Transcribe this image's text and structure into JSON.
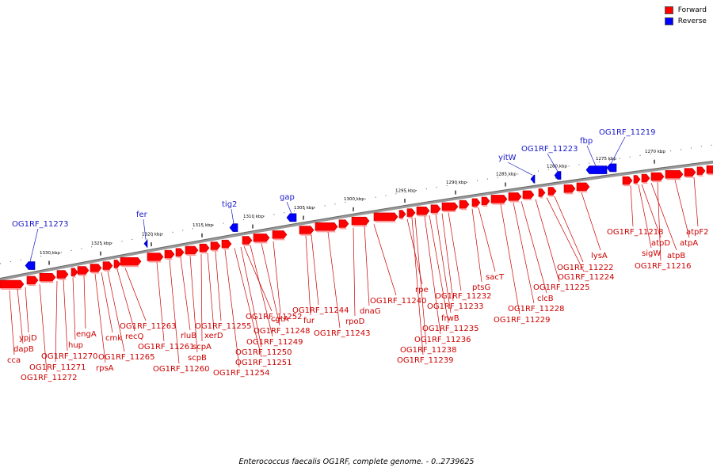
{
  "legend": {
    "forward": {
      "label": "Forward",
      "color": "#ff0000"
    },
    "reverse": {
      "label": "Reverse",
      "color": "#0000ff"
    }
  },
  "caption": "Enterococcus faecalis OG1RF, complete genome. - 0..2739625",
  "ticks": [
    "1270 kbp",
    "1275 kbp",
    "1280 kbp",
    "1285 kbp",
    "1290 kbp",
    "1295 kbp",
    "1300 kbp",
    "1305 kbp",
    "1310 kbp",
    "1315 kbp",
    "1320 kbp",
    "1325 kbp",
    "1330 kbp"
  ],
  "reverse_labels": [
    "OG1RF_11273",
    "fer",
    "tig2",
    "gap",
    "yitW",
    "OG1RF_11223",
    "fbp",
    "OG1RF_11219"
  ],
  "forward_labels": [
    "cca",
    "dapB",
    "ypjD",
    "OG1RF_11272",
    "OG1RF_11271",
    "OG1RF_11270",
    "hup",
    "engA",
    "rpsA",
    "cmk",
    "OG1RF_11265",
    "recQ",
    "OG1RF_11263",
    "OG1RF_11261",
    "OG1RF_11260",
    "rluB",
    "scpB",
    "scpA",
    "xerD",
    "OG1RF_11255",
    "OG1RF_11254",
    "OG1RF_11251",
    "OG1RF_11250",
    "OG1RF_11252",
    "OG1RF_11249",
    "OG1RF_11248",
    "cgtA",
    "fur",
    "OG1RF_11244",
    "OG1RF_11243",
    "rpoD",
    "dnaG",
    "OG1RF_11240",
    "OG1RF_11239",
    "OG1RF_11238",
    "rpe",
    "OG1RF_11236",
    "OG1RF_11235",
    "frwB",
    "OG1RF_11233",
    "OG1RF_11232",
    "ptsG",
    "sacT",
    "OG1RF_11229",
    "OG1RF_11228",
    "clcB",
    "OG1RF_11225",
    "OG1RF_11224",
    "OG1RF_11222",
    "lysA",
    "OG1RF_11218",
    "sigW",
    "atpD",
    "atpB",
    "OG1RF_11216",
    "atpA",
    "atpF2"
  ]
}
